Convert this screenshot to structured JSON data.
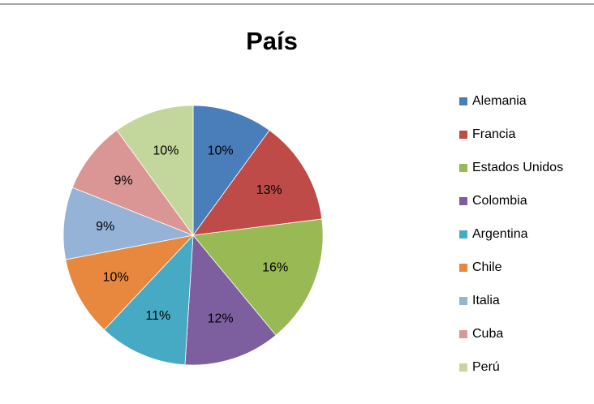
{
  "chart_data": {
    "type": "pie",
    "title": "País",
    "categories": [
      "Alemania",
      "Francia",
      "Estados Unidos",
      "Colombia",
      "Argentina",
      "Chile",
      "Italia",
      "Cuba",
      "Perú"
    ],
    "values": [
      10,
      13,
      16,
      12,
      11,
      10,
      9,
      9,
      10
    ],
    "value_labels": [
      "10%",
      "13%",
      "16%",
      "12%",
      "11%",
      "10%",
      "9%",
      "9%",
      "10%"
    ],
    "colors": [
      "#4a7ebb",
      "#be4b48",
      "#98b954",
      "#7d5fa0",
      "#46aac5",
      "#e8883e",
      "#95b3d7",
      "#d99694",
      "#c3d69b"
    ],
    "legend": "right"
  }
}
